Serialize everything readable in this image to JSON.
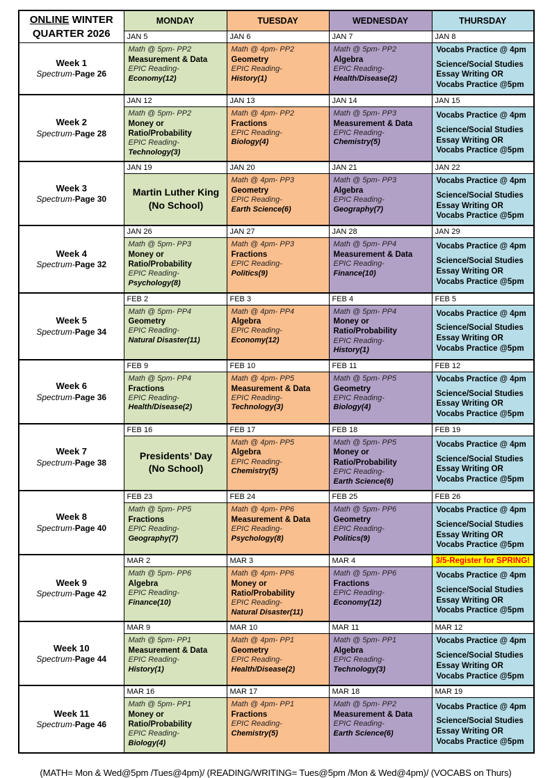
{
  "title": {
    "online": "ONLINE",
    "line1_rest": " WINTER",
    "line2": "QUARTER 2026"
  },
  "header": {
    "days": [
      "MONDAY",
      "TUESDAY",
      "WEDNESDAY",
      "THURSDAY"
    ]
  },
  "spectrum_prefix": "Spectrum-",
  "thursday": {
    "lines": [
      "Vocabs Practice @ 4pm",
      "Science/Social Studies",
      "Essay Writing OR",
      "Vocabs Practice @5pm"
    ]
  },
  "footer": "(MATH= Mon & Wed@5pm /Tues@4pm)/ (READING/WRITING= Tues@5pm /Mon & Wed@4pm)/ (VOCABS on Thurs)",
  "colors": {
    "monday": "#d6e3bc",
    "tuesday": "#fabf8f",
    "wednesday": "#b2a1c7",
    "thursday": "#b6dde8",
    "register_bg": "#ffff00",
    "register_text": "#ff0000"
  },
  "weeks": [
    {
      "label": "Week 1",
      "page": "Page 26",
      "days": [
        {
          "type": "class",
          "date": "JAN 5",
          "math": "Math @ 5pm- PP2",
          "topic": "Measurement & Data",
          "epic": "EPIC Reading-",
          "reading": "Economy(12)"
        },
        {
          "type": "class",
          "date": "JAN 6",
          "math": "Math @ 4pm- PP2",
          "topic": "Geometry",
          "epic": "EPIC Reading-",
          "reading": "History(1)"
        },
        {
          "type": "class",
          "date": "JAN 7",
          "math": "Math @ 5pm- PP2",
          "topic": "Algebra",
          "epic": "EPIC Reading-",
          "reading": "Health/Disease(2)"
        },
        {
          "type": "vocab",
          "date": "JAN 8"
        }
      ]
    },
    {
      "label": "Week 2",
      "page": "Page 28",
      "days": [
        {
          "type": "class",
          "date": "JAN 12",
          "math": "Math @ 5pm- PP2",
          "topic": "Money or Ratio/Probability",
          "epic": "EPIC Reading-",
          "reading": "Technology(3)"
        },
        {
          "type": "class",
          "date": "JAN 13",
          "math": "Math @ 4pm- PP2",
          "topic": "Fractions",
          "epic": "EPIC Reading-",
          "reading": "Biology(4)"
        },
        {
          "type": "class",
          "date": "JAN 14",
          "math": "Math @ 5pm- PP3",
          "topic": "Measurement & Data",
          "epic": "EPIC Reading-",
          "reading": "Chemistry(5)"
        },
        {
          "type": "vocab",
          "date": "JAN 15"
        }
      ]
    },
    {
      "label": "Week 3",
      "page": "Page 30",
      "days": [
        {
          "type": "holiday",
          "date": "JAN 19",
          "line1": "Martin Luther King",
          "line2": "(No School)"
        },
        {
          "type": "class",
          "date": "JAN 20",
          "math": "Math @ 4pm- PP3",
          "topic": "Geometry",
          "epic": "EPIC Reading-",
          "reading": "Earth Science(6)"
        },
        {
          "type": "class",
          "date": "JAN 21",
          "math": "Math @ 5pm- PP3",
          "topic": "Algebra",
          "epic": "EPIC Reading-",
          "reading": "Geography(7)"
        },
        {
          "type": "vocab",
          "date": "JAN 22"
        }
      ]
    },
    {
      "label": "Week 4",
      "page": "Page 32",
      "days": [
        {
          "type": "class",
          "date": "JAN 26",
          "math": "Math @ 5pm- PP3",
          "topic": "Money or Ratio/Probability",
          "epic": "EPIC Reading-",
          "reading": "Psychology(8)"
        },
        {
          "type": "class",
          "date": "JAN 27",
          "math": "Math @ 4pm- PP3",
          "topic": "Fractions",
          "epic": "EPIC Reading-",
          "reading": "Politics(9)"
        },
        {
          "type": "class",
          "date": "JAN 28",
          "math": "Math @ 5pm- PP4",
          "topic": "Measurement & Data",
          "epic": "EPIC Reading-",
          "reading": "Finance(10)"
        },
        {
          "type": "vocab",
          "date": "JAN 29"
        }
      ]
    },
    {
      "label": "Week 5",
      "page": "Page 34",
      "days": [
        {
          "type": "class",
          "date": "FEB 2",
          "math": "Math @ 5pm- PP4",
          "topic": "Geometry",
          "epic": "EPIC Reading-",
          "reading": "Natural Disaster(11)"
        },
        {
          "type": "class",
          "date": "FEB 3",
          "math": "Math @ 4pm- PP4",
          "topic": "Algebra",
          "epic": "EPIC Reading-",
          "reading": "Economy(12)"
        },
        {
          "type": "class",
          "date": "FEB 4",
          "math": "Math @ 5pm- PP4",
          "topic": "Money or Ratio/Probability",
          "epic": "EPIC Reading-",
          "reading": "History(1)"
        },
        {
          "type": "vocab",
          "date": "FEB 5"
        }
      ]
    },
    {
      "label": "Week 6",
      "page": "Page 36",
      "days": [
        {
          "type": "class",
          "date": "FEB 9",
          "math": "Math @ 5pm- PP4",
          "topic": "Fractions",
          "epic": "EPIC Reading-",
          "reading": "Health/Disease(2)"
        },
        {
          "type": "class",
          "date": "FEB 10",
          "math": "Math @ 4pm- PP5",
          "topic": "Measurement & Data",
          "epic": "EPIC Reading-",
          "reading": "Technology(3)"
        },
        {
          "type": "class",
          "date": "FEB 11",
          "math": "Math @ 5pm- PP5",
          "topic": "Geometry",
          "epic": "EPIC Reading-",
          "reading": "Biology(4)"
        },
        {
          "type": "vocab",
          "date": "FEB 12"
        }
      ]
    },
    {
      "label": "Week 7",
      "page": "Page 38",
      "days": [
        {
          "type": "holiday",
          "date": "FEB 16",
          "line1": "Presidents’ Day",
          "line2": "(No School)"
        },
        {
          "type": "class",
          "date": "FEB 17",
          "math": "Math @ 4pm- PP5",
          "topic": "Algebra",
          "epic": "EPIC Reading-",
          "reading": "Chemistry(5)"
        },
        {
          "type": "class",
          "date": "FEB 18",
          "math": "Math @ 5pm- PP5",
          "topic": "Money or Ratio/Probability",
          "epic": "EPIC Reading-",
          "reading": "Earth Science(6)"
        },
        {
          "type": "vocab",
          "date": "FEB 19"
        }
      ]
    },
    {
      "label": "Week 8",
      "page": "Page 40",
      "days": [
        {
          "type": "class",
          "date": "FEB 23",
          "math": "Math @ 5pm- PP5",
          "topic": "Fractions",
          "epic": "EPIC Reading-",
          "reading": "Geography(7)"
        },
        {
          "type": "class",
          "date": "FEB 24",
          "math": "Math @ 4pm- PP6",
          "topic": "Measurement & Data",
          "epic": "EPIC Reading-",
          "reading": "Psychology(8)"
        },
        {
          "type": "class",
          "date": "FEB 25",
          "math": "Math @ 5pm- PP6",
          "topic": "Geometry",
          "epic": "EPIC Reading-",
          "reading": "Politics(9)"
        },
        {
          "type": "vocab",
          "date": "FEB 26"
        }
      ]
    },
    {
      "label": "Week 9",
      "page": "Page 42",
      "days": [
        {
          "type": "class",
          "date": "MAR 2",
          "math": "Math @ 5pm- PP6",
          "topic": "Algebra",
          "epic": "EPIC Reading-",
          "reading": "Finance(10)"
        },
        {
          "type": "class",
          "date": "MAR 3",
          "math": "Math @ 4pm- PP6",
          "topic": "Money or Ratio/Probability",
          "epic": "EPIC Reading-",
          "reading": "Natural Disaster(11)"
        },
        {
          "type": "class",
          "date": "MAR 4",
          "math": "Math @ 5pm- PP6",
          "topic": "Fractions",
          "epic": "EPIC Reading-",
          "reading": "Economy(12)"
        },
        {
          "type": "vocab",
          "banner": "3/5-Register for SPRING!"
        }
      ]
    },
    {
      "label": "Week 10",
      "page": "Page 44",
      "days": [
        {
          "type": "class",
          "date": "MAR 9",
          "math": "Math @ 5pm- PP1",
          "topic": "Measurement & Data",
          "epic": "EPIC Reading-",
          "reading": "History(1)"
        },
        {
          "type": "class",
          "date": "MAR 10",
          "math": "Math @ 4pm- PP1",
          "topic": "Geometry",
          "epic": "EPIC Reading-",
          "reading": "Health/Disease(2)"
        },
        {
          "type": "class",
          "date": "MAR 11",
          "math": "Math @ 5pm- PP1",
          "topic": "Algebra",
          "epic": "EPIC Reading-",
          "reading": "Technology(3)"
        },
        {
          "type": "vocab",
          "date": "MAR 12"
        }
      ]
    },
    {
      "label": "Week 11",
      "page": "Page 46",
      "days": [
        {
          "type": "class",
          "date": "MAR 16",
          "math": "Math @ 5pm- PP1",
          "topic": "Money or Ratio/Probability",
          "epic": "EPIC Reading-",
          "reading": "Biology(4)"
        },
        {
          "type": "class",
          "date": "MAR 17",
          "math": "Math @ 4pm- PP1",
          "topic": "Fractions",
          "epic": "EPIC Reading-",
          "reading": "Chemistry(5)"
        },
        {
          "type": "class",
          "date": "MAR 18",
          "math": "Math @ 5pm- PP2",
          "topic": "Measurement & Data",
          "epic": "EPIC Reading-",
          "reading": "Earth Science(6)"
        },
        {
          "type": "vocab",
          "date": "MAR 19"
        }
      ]
    }
  ]
}
